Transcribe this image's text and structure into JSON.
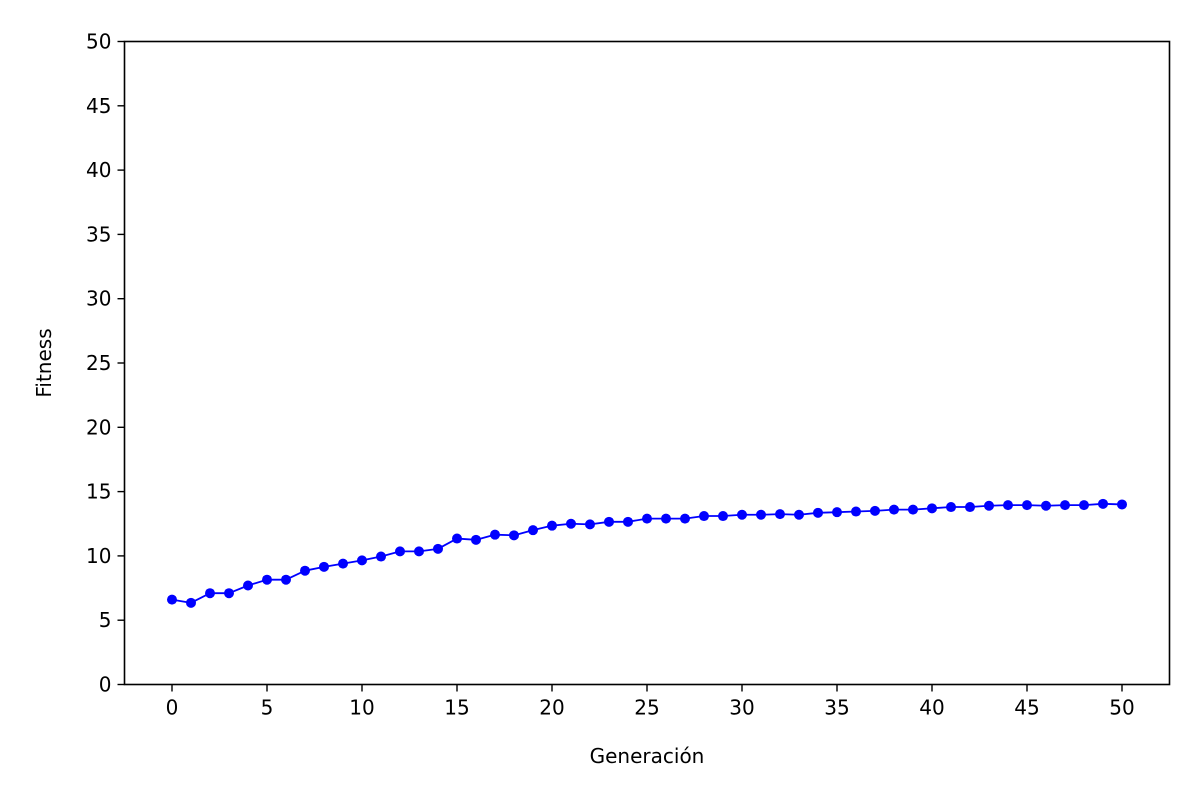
{
  "chart_data": {
    "type": "line",
    "title": "",
    "xlabel": "Generación",
    "ylabel": "Fitness",
    "xlim": [
      -2.5,
      52.5
    ],
    "ylim": [
      0,
      50
    ],
    "xticks": [
      0,
      5,
      10,
      15,
      20,
      25,
      30,
      35,
      40,
      45,
      50
    ],
    "yticks": [
      0,
      5,
      10,
      15,
      20,
      25,
      30,
      35,
      40,
      45,
      50
    ],
    "grid": false,
    "series": [
      {
        "color": "#0000ff",
        "marker": "circle",
        "x": [
          0,
          1,
          2,
          3,
          4,
          5,
          6,
          7,
          8,
          9,
          10,
          11,
          12,
          13,
          14,
          15,
          16,
          17,
          18,
          19,
          20,
          21,
          22,
          23,
          24,
          25,
          26,
          27,
          28,
          29,
          30,
          31,
          32,
          33,
          34,
          35,
          36,
          37,
          38,
          39,
          40,
          41,
          42,
          43,
          44,
          45,
          46,
          47,
          48,
          49,
          50
        ],
        "y": [
          6.6,
          6.35,
          7.1,
          7.1,
          7.7,
          8.15,
          8.15,
          8.85,
          9.15,
          9.4,
          9.65,
          9.95,
          10.35,
          10.35,
          10.55,
          11.35,
          11.25,
          11.65,
          11.6,
          12.0,
          12.35,
          12.5,
          12.45,
          12.65,
          12.65,
          12.9,
          12.9,
          12.9,
          13.1,
          13.1,
          13.2,
          13.2,
          13.25,
          13.2,
          13.35,
          13.4,
          13.45,
          13.5,
          13.6,
          13.6,
          13.7,
          13.8,
          13.8,
          13.9,
          13.95,
          13.95,
          13.9,
          13.95,
          13.95,
          14.05,
          14.0
        ]
      }
    ]
  }
}
